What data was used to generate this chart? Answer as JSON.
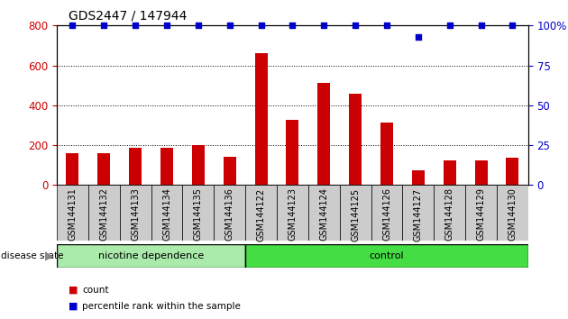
{
  "title": "GDS2447 / 147944",
  "categories": [
    "GSM144131",
    "GSM144132",
    "GSM144133",
    "GSM144134",
    "GSM144135",
    "GSM144136",
    "GSM144122",
    "GSM144123",
    "GSM144124",
    "GSM144125",
    "GSM144126",
    "GSM144127",
    "GSM144128",
    "GSM144129",
    "GSM144130"
  ],
  "counts": [
    160,
    158,
    185,
    185,
    200,
    143,
    660,
    325,
    510,
    460,
    315,
    75,
    125,
    125,
    138
  ],
  "percentile": [
    100,
    100,
    100,
    100,
    100,
    100,
    100,
    100,
    100,
    100,
    100,
    93,
    100,
    100,
    100
  ],
  "bar_color": "#cc0000",
  "dot_color": "#0000cc",
  "ylim_left": [
    0,
    800
  ],
  "ylim_right": [
    0,
    100
  ],
  "yticks_left": [
    0,
    200,
    400,
    600,
    800
  ],
  "yticks_right": [
    0,
    25,
    50,
    75,
    100
  ],
  "group1_label": "nicotine dependence",
  "group2_label": "control",
  "group1_count": 6,
  "group2_count": 9,
  "group1_color": "#aaeaaa",
  "group2_color": "#44dd44",
  "xticklabel_bg": "#cccccc",
  "disease_state_label": "disease state",
  "legend_count_label": "count",
  "legend_percentile_label": "percentile rank within the sample",
  "background_color": "#ffffff",
  "plot_bg_color": "#ffffff",
  "title_fontsize": 10,
  "tick_label_fontsize": 7
}
